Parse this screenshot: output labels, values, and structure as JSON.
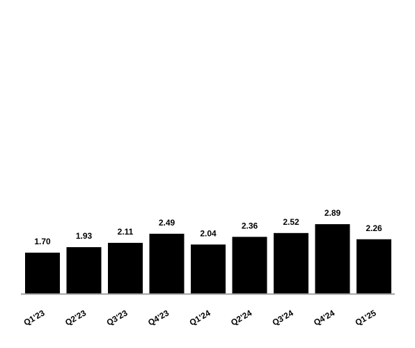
{
  "chart_data": {
    "type": "bar",
    "categories": [
      "Q1'23",
      "Q2'23",
      "Q3'23",
      "Q4'23",
      "Q1'24",
      "Q2'24",
      "Q3'24",
      "Q4'24",
      "Q1'25"
    ],
    "values": [
      1.7,
      1.93,
      2.11,
      2.49,
      2.04,
      2.36,
      2.52,
      2.89,
      2.26
    ],
    "value_labels": [
      "1.70",
      "1.93",
      "2.11",
      "2.49",
      "2.04",
      "2.36",
      "2.52",
      "2.89",
      "2.26"
    ],
    "color": "#000000"
  }
}
